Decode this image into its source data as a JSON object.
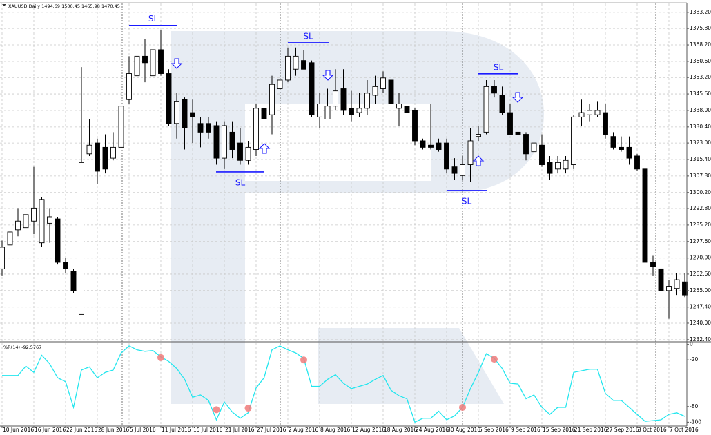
{
  "chart_data": [
    {
      "type": "candlestick",
      "title": "XAUUSD,Daily  1494.69 1500.45 1465.98 1470.45",
      "categories": [
        "10 Jun 2016",
        null,
        null,
        null,
        "16 Jun 2016",
        null,
        null,
        null,
        "22 Jun 2016",
        null,
        null,
        null,
        "28 Jun 2016",
        null,
        null,
        null,
        "5 Jul 2016",
        null,
        null,
        null,
        "11 Jul 2016",
        null,
        null,
        null,
        "15 Jul 2016",
        null,
        null,
        null,
        "21 Jul 2016",
        null,
        null,
        null,
        "27 Jul 2016",
        null,
        null,
        null,
        "2 Aug 2016",
        null,
        null,
        null,
        "8 Aug 2016",
        null,
        null,
        null,
        "12 Aug 2016",
        null,
        null,
        null,
        "18 Aug 2016",
        null,
        null,
        null,
        "24 Aug 2016",
        null,
        null,
        null,
        "30 Aug 2016",
        null,
        null,
        null,
        "5 Sep 2016",
        null,
        null,
        null,
        "9 Sep 2016",
        null,
        null,
        null,
        "15 Sep 2016",
        null,
        null,
        null,
        "21 Sep 2016",
        null,
        null,
        null,
        "27 Sep 2016",
        null,
        null,
        null,
        "3 Oct 2016",
        null,
        null,
        null,
        "7 Oct 2016",
        null,
        null
      ],
      "open": [
        1265,
        1276,
        1283,
        1284,
        1287,
        1277,
        1286,
        1288,
        1268,
        1264,
        1244,
        1318,
        1323,
        1321,
        1316,
        1321,
        1343,
        1354,
        1363,
        1354,
        1366,
        1355,
        1332,
        1343,
        1337,
        1332,
        1332,
        1331,
        1316,
        1328,
        1323,
        1315,
        1320,
        1339,
        1336,
        1348,
        1352,
        1357,
        1361,
        1360,
        1335,
        1334,
        1340,
        1348,
        1339,
        1337,
        1339,
        1345,
        1348,
        1352,
        1339,
        1340,
        1338,
        1324,
        1322,
        1323,
        1323,
        1312,
        1308,
        1313,
        1326,
        1328,
        1349,
        1345,
        1337,
        1328,
        1327,
        1319,
        1322,
        1314,
        1311,
        1311,
        1313,
        1335,
        1336,
        1336,
        1337,
        1326,
        1321,
        1321,
        1317,
        1311,
        1268,
        1265,
        1255,
        1256,
        1259
      ],
      "high": [
        1278,
        1287,
        1293,
        1296,
        1312,
        1298,
        1293,
        1289,
        1270,
        1265,
        1358,
        1334,
        1325,
        1327,
        1328,
        1346,
        1363,
        1370,
        1371,
        1374,
        1375,
        1357,
        1346,
        1344,
        1343,
        1335,
        1335,
        1333,
        1333,
        1333,
        1330,
        1324,
        1341,
        1349,
        1354,
        1357,
        1367,
        1367,
        1366,
        1361,
        1346,
        1348,
        1357,
        1357,
        1347,
        1346,
        1352,
        1354,
        1356,
        1353,
        1346,
        1344,
        1339,
        1325,
        1341,
        1325,
        1325,
        1316,
        1317,
        1330,
        1331,
        1352,
        1352,
        1349,
        1341,
        1333,
        1328,
        1325,
        1327,
        1317,
        1317,
        1317,
        1336,
        1343,
        1341,
        1342,
        1341,
        1328,
        1326,
        1326,
        1318,
        1312,
        1271,
        1268,
        1260,
        1263,
        1263
      ],
      "low": [
        1262,
        1270,
        1280,
        1280,
        1281,
        1275,
        1277,
        1267,
        1263,
        1254,
        1244,
        1317,
        1304,
        1309,
        1315,
        1320,
        1341,
        1348,
        1351,
        1335,
        1354,
        1331,
        1325,
        1320,
        1323,
        1321,
        1325,
        1313,
        1311,
        1316,
        1313,
        1313,
        1317,
        1327,
        1327,
        1347,
        1351,
        1354,
        1357,
        1335,
        1330,
        1334,
        1338,
        1336,
        1333,
        1335,
        1336,
        1341,
        1346,
        1340,
        1331,
        1335,
        1322,
        1320,
        1320,
        1319,
        1309,
        1306,
        1306,
        1305,
        1324,
        1327,
        1344,
        1336,
        1327,
        1323,
        1315,
        1314,
        1312,
        1306,
        1309,
        1309,
        1311,
        1331,
        1333,
        1335,
        1325,
        1320,
        1319,
        1313,
        1310,
        1266,
        1262,
        1249,
        1242,
        1253,
        1252
      ],
      "close": [
        1275,
        1282,
        1287,
        1290,
        1293,
        1297,
        1289,
        1268,
        1265,
        1255,
        1314,
        1322,
        1310,
        1311,
        1321,
        1340,
        1355,
        1363,
        1360,
        1366,
        1355,
        1332,
        1342,
        1330,
        1335,
        1328,
        1328,
        1316,
        1331,
        1320,
        1315,
        1321,
        1339,
        1334,
        1350,
        1352,
        1363,
        1363,
        1357,
        1336,
        1341,
        1340,
        1347,
        1338,
        1336,
        1339,
        1346,
        1349,
        1353,
        1341,
        1341,
        1337,
        1324,
        1321,
        1321,
        1320,
        1311,
        1309,
        1313,
        1324,
        1327,
        1349,
        1346,
        1337,
        1327,
        1327,
        1318,
        1323,
        1313,
        1309,
        1314,
        1315,
        1335,
        1337,
        1338,
        1338,
        1327,
        1321,
        1320,
        1316,
        1311,
        1268,
        1266,
        1255,
        1257,
        1260,
        1253
      ],
      "up_color": "#ffffff",
      "down_color": "#000000",
      "ylim": [
        1231.4,
        1387.3
      ],
      "yticks": [
        {
          "value": 1383.2,
          "label": "1383.20"
        },
        {
          "value": 1375.8,
          "label": "1375.80"
        },
        {
          "value": 1368.2,
          "label": "1368.20"
        },
        {
          "value": 1360.6,
          "label": "1360.60"
        },
        {
          "value": 1353.2,
          "label": "1353.20"
        },
        {
          "value": 1345.6,
          "label": "1345.60"
        },
        {
          "value": 1338,
          "label": "1338.00"
        },
        {
          "value": 1330.4,
          "label": "1330.40"
        },
        {
          "value": 1323,
          "label": "1323.00"
        },
        {
          "value": 1315.4,
          "label": "1315.40"
        },
        {
          "value": 1307.8,
          "label": "1307.80"
        },
        {
          "value": 1300.2,
          "label": "1300.20"
        },
        {
          "value": 1292.8,
          "label": "1292.80"
        },
        {
          "value": 1285.2,
          "label": "1285.20"
        },
        {
          "value": 1277.6,
          "label": "1277.60"
        },
        {
          "value": 1270,
          "label": "1270.00"
        },
        {
          "value": 1262.6,
          "label": "1262.60"
        },
        {
          "value": 1255,
          "label": "1255.00"
        },
        {
          "value": 1247.4,
          "label": "1247.40"
        },
        {
          "value": 1240,
          "label": "1240.00"
        },
        {
          "value": 1232.4,
          "label": "1232.40"
        }
      ],
      "grid": true,
      "annotations": [
        {
          "text": "SL",
          "value": 1377.2,
          "color": "#1a1aff"
        },
        {
          "text": "SL",
          "value": 1309.7,
          "color": "#1a1aff"
        },
        {
          "text": "SL",
          "value": 1369.2,
          "color": "#1a1aff"
        },
        {
          "text": "SL",
          "value": 1301.1,
          "color": "#1a1aff"
        },
        {
          "text": "SL",
          "value": 1354.9,
          "color": "#1a1aff"
        }
      ]
    },
    {
      "type": "line",
      "title": "%R(14) -92.5767",
      "values": [
        -40,
        -40,
        -40,
        -28,
        -36,
        -14,
        -25,
        -43,
        -48,
        -81,
        -33,
        -29,
        -43,
        -36,
        -33,
        -11,
        -2,
        -7,
        -9,
        -8,
        -16,
        -22,
        -31,
        -45,
        -68,
        -65,
        -72,
        -97,
        -74,
        -87,
        -95,
        -88,
        -56,
        -43,
        -7,
        -2,
        -7,
        -11,
        -18,
        -54,
        -54,
        -45,
        -39,
        -50,
        -57,
        -54,
        -51,
        -45,
        -40,
        -59,
        -66,
        -70,
        -100,
        -95,
        -95,
        -86,
        -97,
        -92,
        -81,
        -57,
        -36,
        -12,
        -18,
        -31,
        -50,
        -51,
        -70,
        -65,
        -81,
        -90,
        -81,
        -81,
        -36,
        -34,
        -32,
        -32,
        -63,
        -72,
        -72,
        -81,
        -90,
        -99,
        -98,
        -97,
        -90,
        -88,
        -92.5767
      ],
      "color": "#22e6ee",
      "markers": {
        "color": "#f07a7a",
        "values": [
          null,
          null,
          null,
          null,
          null,
          null,
          null,
          null,
          null,
          null,
          null,
          null,
          null,
          null,
          null,
          null,
          null,
          null,
          null,
          null,
          -17,
          null,
          null,
          null,
          null,
          null,
          null,
          -84,
          null,
          null,
          null,
          -82,
          null,
          null,
          null,
          null,
          null,
          null,
          -20,
          null,
          null,
          null,
          null,
          null,
          null,
          null,
          null,
          null,
          null,
          null,
          null,
          null,
          null,
          null,
          null,
          null,
          null,
          null,
          -81,
          null,
          null,
          null,
          -19,
          null,
          null,
          null,
          null,
          null,
          null,
          null,
          null,
          null,
          null,
          null,
          null,
          null,
          null,
          null,
          null,
          null,
          null,
          null,
          null,
          null,
          null,
          null,
          null
        ]
      },
      "ylim": [
        -105,
        1.5
      ],
      "yticks": [
        0,
        -20,
        -80,
        -100
      ],
      "grid": false
    }
  ]
}
